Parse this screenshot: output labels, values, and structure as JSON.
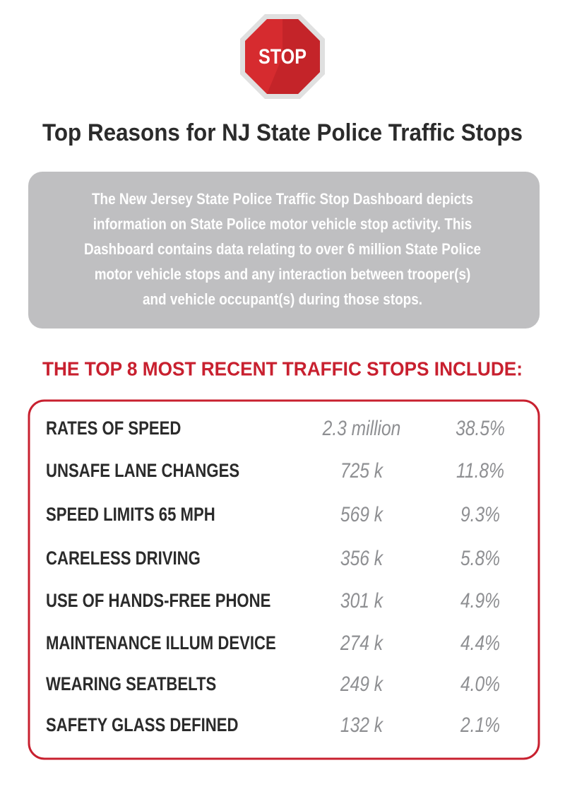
{
  "sign": "STOP",
  "header": {
    "title": "Top Reasons for NJ State Police Traffic Stops"
  },
  "intro": {
    "lines": [
      "The New Jersey State Police Traffic Stop Dashboard depicts",
      "information on State Police motor vehicle stop activity. This",
      "Dashboard contains data relating to over 6 million State Police",
      "motor vehicle stops and any interaction between trooper(s)",
      "and vehicle occupant(s) during those stops."
    ]
  },
  "table": {
    "heading": "THE TOP 8 MOST RECENT TRAFFIC STOPS INCLUDE:",
    "rows": [
      [
        "RATES OF SPEED",
        "2.3 million",
        "38.5%"
      ],
      [
        "UNSAFE LANE CHANGES",
        "725 k",
        "11.8%"
      ],
      [
        "SPEED LIMITS 65 MPH",
        "569 k",
        "9.3%"
      ],
      [
        "CARELESS DRIVING",
        "356 k",
        "5.8%"
      ],
      [
        "USE OF HANDS-FREE PHONE",
        "301 k",
        "4.9%"
      ],
      [
        "MAINTENANCE ILLUM DEVICE",
        "274 k",
        "4.4%"
      ],
      [
        "WEARING SEATBELTS",
        "249 k",
        "4.0%"
      ],
      [
        "SAFETY GLASS DEFINED",
        "132 k",
        "2.1%"
      ]
    ]
  }
}
